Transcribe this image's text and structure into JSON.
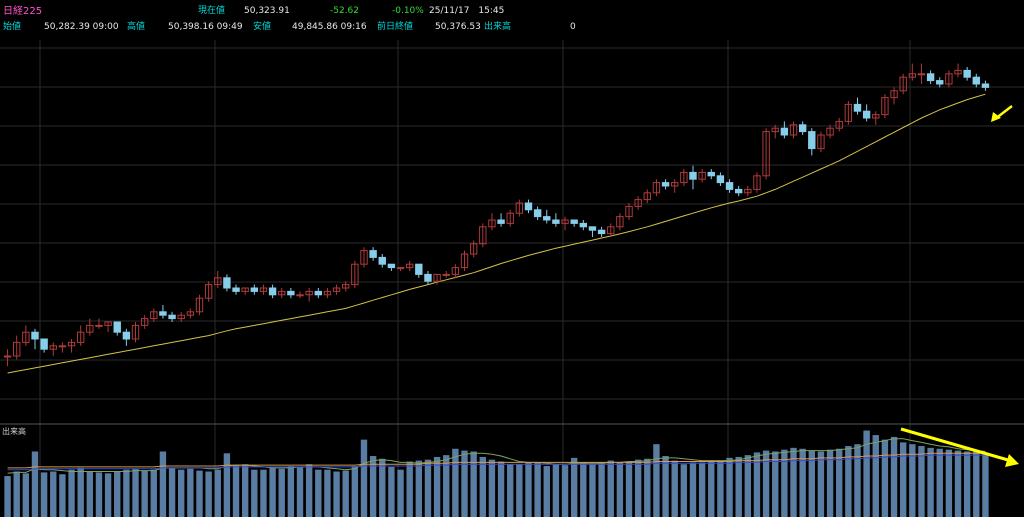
{
  "header": {
    "instrument": "日経225",
    "current_label": "現在値",
    "current_value": "50,323.91",
    "change": "-52.62",
    "change_pct": "-0.10%",
    "datetime": "25/11/17　15:45",
    "open_label": "始値",
    "open_value": "50,282.39 09:00",
    "high_label": "高値",
    "high_value": "50,398.16 09:49",
    "low_label": "安値",
    "low_value": "49,845.86 09:16",
    "prev_close_label": "前日終値",
    "prev_close_value": "50,376.53",
    "volume_label": "出来高",
    "volume_value": "0"
  },
  "volume_panel_label": "出来高",
  "colors": {
    "background": "#000000",
    "grid": "#2a2a2a",
    "up_candle": "#b03a3a",
    "down_candle": "#87ceeb",
    "moving_average": "#d4c24a",
    "volume_bar": "#5a7da3",
    "volume_ma1": "#7fa35a",
    "volume_ma2": "#d49a4a",
    "volume_ma3": "#3a4ad4",
    "annotation": "#ffff00",
    "header_label": "#00d7d7",
    "header_value": "#e8e8e8",
    "title": "#ff55c8",
    "negative": "#33dd33"
  },
  "chart_data": {
    "type": "candlestick",
    "price_panel": {
      "y_range": [
        0,
        100
      ],
      "candles": [
        [
          20,
          22,
          17,
          20
        ],
        [
          20,
          26,
          19,
          24
        ],
        [
          24,
          29,
          23,
          27
        ],
        [
          27,
          28,
          22,
          25
        ],
        [
          25,
          25,
          21,
          22
        ],
        [
          22,
          24,
          20,
          23
        ],
        [
          23,
          24,
          21,
          23
        ],
        [
          23,
          25,
          21,
          24
        ],
        [
          24,
          29,
          23,
          27
        ],
        [
          27,
          31,
          26,
          29
        ],
        [
          29,
          31,
          28,
          29
        ],
        [
          29,
          30,
          27,
          30
        ],
        [
          30,
          30,
          26,
          27
        ],
        [
          27,
          28,
          23,
          25
        ],
        [
          25,
          30,
          24,
          29
        ],
        [
          29,
          32,
          28,
          31
        ],
        [
          31,
          34,
          30,
          33
        ],
        [
          33,
          35,
          31,
          32
        ],
        [
          32,
          33,
          30,
          31
        ],
        [
          31,
          33,
          30,
          32
        ],
        [
          32,
          34,
          31,
          33
        ],
        [
          33,
          38,
          32,
          37
        ],
        [
          37,
          42,
          36,
          41
        ],
        [
          41,
          45,
          40,
          43
        ],
        [
          43,
          44,
          39,
          40
        ],
        [
          40,
          41,
          38,
          39
        ],
        [
          39,
          40,
          38,
          40
        ],
        [
          40,
          41,
          38,
          39
        ],
        [
          39,
          41,
          38,
          40
        ],
        [
          40,
          41,
          37,
          38
        ],
        [
          38,
          40,
          37,
          39
        ],
        [
          39,
          40,
          37,
          38
        ],
        [
          38,
          39,
          37,
          38
        ],
        [
          38,
          40,
          36,
          39
        ],
        [
          39,
          40,
          37,
          38
        ],
        [
          38,
          40,
          37,
          39
        ],
        [
          39,
          41,
          38,
          40
        ],
        [
          40,
          42,
          39,
          41
        ],
        [
          41,
          48,
          40,
          47
        ],
        [
          47,
          52,
          46,
          51
        ],
        [
          51,
          52,
          48,
          49
        ],
        [
          49,
          50,
          46,
          47
        ],
        [
          47,
          47,
          45,
          46
        ],
        [
          46,
          46,
          45,
          46
        ],
        [
          46,
          48,
          45,
          47
        ],
        [
          47,
          47,
          43,
          44
        ],
        [
          44,
          45,
          41,
          42
        ],
        [
          42,
          44,
          41,
          44
        ],
        [
          44,
          45,
          43,
          44
        ],
        [
          44,
          47,
          43,
          46
        ],
        [
          46,
          51,
          45,
          50
        ],
        [
          50,
          54,
          49,
          53
        ],
        [
          53,
          59,
          52,
          58
        ],
        [
          58,
          62,
          57,
          60
        ],
        [
          60,
          62,
          58,
          59
        ],
        [
          59,
          63,
          58,
          62
        ],
        [
          62,
          66,
          61,
          65
        ],
        [
          65,
          66,
          62,
          63
        ],
        [
          63,
          64,
          60,
          61
        ],
        [
          61,
          63,
          59,
          60
        ],
        [
          60,
          62,
          58,
          59
        ],
        [
          59,
          61,
          57,
          60
        ],
        [
          60,
          60,
          58,
          59
        ],
        [
          59,
          60,
          57,
          58
        ],
        [
          58,
          58,
          55,
          57
        ],
        [
          57,
          58,
          55,
          56
        ],
        [
          56,
          59,
          55,
          58
        ],
        [
          58,
          62,
          57,
          61
        ],
        [
          61,
          65,
          60,
          64
        ],
        [
          64,
          67,
          63,
          66
        ],
        [
          66,
          69,
          65,
          68
        ],
        [
          68,
          72,
          67,
          71
        ],
        [
          71,
          72,
          69,
          70
        ],
        [
          70,
          72,
          68,
          71
        ],
        [
          71,
          75,
          70,
          74
        ],
        [
          74,
          76,
          69,
          72
        ],
        [
          72,
          75,
          71,
          74
        ],
        [
          74,
          75,
          72,
          73
        ],
        [
          73,
          74,
          70,
          71
        ],
        [
          71,
          72,
          68,
          69
        ],
        [
          69,
          70,
          67,
          68
        ],
        [
          68,
          70,
          67,
          69
        ],
        [
          69,
          74,
          68,
          73
        ],
        [
          73,
          87,
          72,
          86
        ],
        [
          86,
          88,
          84,
          87
        ],
        [
          87,
          89,
          84,
          85
        ],
        [
          85,
          89,
          84,
          88
        ],
        [
          88,
          89,
          85,
          86
        ],
        [
          86,
          87,
          79,
          81
        ],
        [
          81,
          86,
          80,
          85
        ],
        [
          85,
          88,
          84,
          87
        ],
        [
          87,
          90,
          86,
          89
        ],
        [
          89,
          95,
          88,
          94
        ],
        [
          94,
          96,
          91,
          92
        ],
        [
          92,
          94,
          89,
          90
        ],
        [
          90,
          92,
          88,
          91
        ],
        [
          91,
          97,
          90,
          96
        ],
        [
          96,
          99,
          94,
          98
        ],
        [
          98,
          103,
          97,
          102
        ],
        [
          102,
          106,
          101,
          103
        ],
        [
          103,
          106,
          100,
          103
        ],
        [
          103,
          104,
          100,
          101
        ],
        [
          101,
          102,
          99,
          100
        ],
        [
          100,
          104,
          99,
          103
        ],
        [
          103,
          106,
          102,
          104
        ],
        [
          104,
          105,
          101,
          102
        ],
        [
          102,
          103,
          99,
          100
        ],
        [
          100,
          101,
          98,
          99
        ]
      ],
      "moving_average": [
        15,
        15.5,
        16,
        16.5,
        17,
        17.5,
        18,
        18.5,
        19,
        19.5,
        20,
        20.5,
        21,
        21.5,
        22,
        22.5,
        23,
        23.5,
        24,
        24.5,
        25,
        25.5,
        26,
        26.7,
        27.4,
        28,
        28.5,
        29,
        29.5,
        30,
        30.5,
        31,
        31.5,
        32,
        32.5,
        33,
        33.5,
        34,
        34.8,
        35.6,
        36.4,
        37.2,
        38,
        38.8,
        39.6,
        40.3,
        41,
        41.7,
        42.4,
        43.1,
        43.8,
        44.5,
        45.4,
        46.3,
        47.2,
        48,
        48.8,
        49.6,
        50.3,
        51,
        51.7,
        52.3,
        52.9,
        53.5,
        54.1,
        54.7,
        55.3,
        55.9,
        56.6,
        57.3,
        58,
        58.8,
        59.6,
        60.4,
        61.2,
        62,
        62.8,
        63.6,
        64.3,
        65,
        65.6,
        66.3,
        67,
        68,
        69,
        70.2,
        71.4,
        72.6,
        73.8,
        75,
        76.2,
        77.4,
        78.8,
        80.2,
        81.6,
        83,
        84.4,
        85.8,
        87.2,
        88.6,
        90,
        91.2,
        92.4,
        93.4,
        94.4,
        95.4,
        96.2,
        97
      ]
    },
    "volume_panel": {
      "y_range": [
        0,
        100
      ],
      "volumes": [
        45,
        50,
        48,
        72,
        49,
        50,
        47,
        52,
        54,
        50,
        49,
        48,
        50,
        52,
        53,
        51,
        52,
        72,
        54,
        52,
        53,
        51,
        50,
        52,
        70,
        57,
        58,
        52,
        52,
        54,
        53,
        56,
        55,
        58,
        52,
        52,
        50,
        51,
        56,
        85,
        67,
        64,
        55,
        52,
        61,
        62,
        63,
        66,
        68,
        75,
        73,
        72,
        66,
        63,
        61,
        58,
        58,
        60,
        60,
        56,
        58,
        57,
        65,
        60,
        58,
        60,
        62,
        60,
        61,
        63,
        64,
        80,
        67,
        62,
        58,
        60,
        60,
        62,
        61,
        65,
        66,
        68,
        71,
        73,
        72,
        74,
        76,
        75,
        73,
        72,
        74,
        75,
        78,
        80,
        95,
        90,
        85,
        88,
        82,
        80,
        78,
        76,
        75,
        74,
        73,
        72,
        72,
        70
      ],
      "ma_short": [
        48,
        49,
        49,
        53,
        52,
        52,
        51,
        50,
        50,
        50,
        50,
        50,
        50,
        50,
        51,
        51,
        51,
        54,
        54,
        54,
        54,
        54,
        53,
        53,
        56,
        57,
        57,
        56,
        55,
        54,
        54,
        54,
        55,
        55,
        55,
        54,
        53,
        52,
        53,
        59,
        62,
        63,
        62,
        60,
        60,
        59,
        60,
        61,
        63,
        66,
        69,
        70,
        70,
        69,
        67,
        64,
        61,
        60,
        60,
        59,
        58,
        58,
        59,
        59,
        59,
        59,
        60,
        60,
        61,
        61,
        62,
        64,
        65,
        65,
        64,
        63,
        62,
        62,
        62,
        62,
        63,
        65,
        67,
        69,
        70,
        71,
        72,
        73,
        73,
        73,
        73,
        74,
        75,
        76,
        80,
        82,
        84,
        86,
        86,
        84,
        82,
        80,
        78,
        77,
        75,
        74,
        73,
        72
      ],
      "ma_long": [
        54,
        54,
        54,
        55,
        55,
        55,
        55,
        55,
        55,
        55,
        55,
        55,
        55,
        55,
        55,
        55,
        55,
        56,
        56,
        56,
        56,
        56,
        56,
        56,
        57,
        57,
        57,
        57,
        57,
        57,
        57,
        57,
        57,
        57,
        57,
        57,
        57,
        57,
        57,
        58,
        58,
        58,
        58,
        58,
        58,
        58,
        59,
        59,
        59,
        60,
        60,
        60,
        60,
        60,
        60,
        60,
        60,
        60,
        60,
        60,
        60,
        60,
        60,
        60,
        60,
        60,
        60,
        60,
        60,
        60,
        60,
        61,
        61,
        61,
        61,
        61,
        61,
        61,
        61,
        61,
        62,
        62,
        62,
        63,
        63,
        63,
        64,
        64,
        64,
        65,
        65,
        65,
        66,
        66,
        67,
        67,
        68,
        68,
        69,
        69,
        69,
        70,
        70,
        70,
        70,
        70,
        70,
        70
      ]
    }
  }
}
